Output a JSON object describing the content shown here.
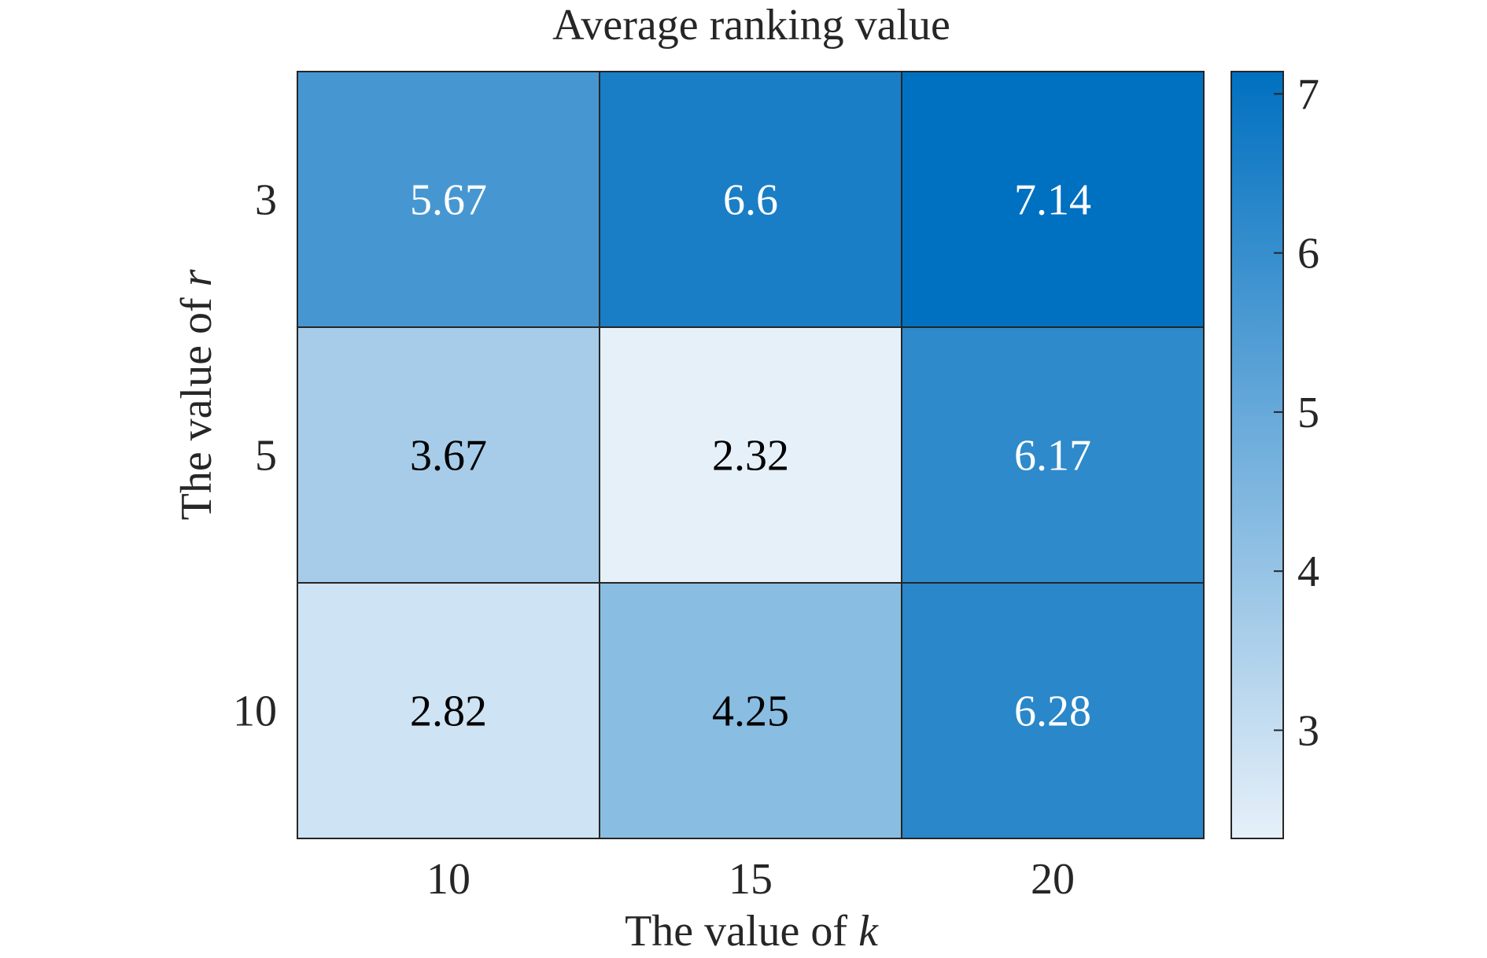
{
  "chart_data": {
    "type": "heatmap",
    "title": "Average ranking value",
    "xlabel": {
      "prefix": "The value of ",
      "var": "k"
    },
    "ylabel": {
      "prefix": "The value of ",
      "var": "r"
    },
    "x_categories": [
      "10",
      "15",
      "20"
    ],
    "y_categories": [
      "3",
      "5",
      "10"
    ],
    "values": [
      [
        5.67,
        6.6,
        7.14
      ],
      [
        3.67,
        2.32,
        6.17
      ],
      [
        2.82,
        4.25,
        6.28
      ]
    ],
    "cell_labels": [
      [
        "5.67",
        "6.6",
        "7.14"
      ],
      [
        "3.67",
        "2.32",
        "6.17"
      ],
      [
        "2.82",
        "4.25",
        "6.28"
      ]
    ],
    "colorbar": {
      "range": [
        2.32,
        7.14
      ],
      "ticks": [
        3,
        4,
        5,
        6,
        7
      ],
      "tick_labels": [
        "3",
        "4",
        "5",
        "6",
        "7"
      ],
      "colormap": [
        "#e6f0f9",
        "#0070c0"
      ]
    },
    "grid": false,
    "legend": "colorbar-right"
  }
}
